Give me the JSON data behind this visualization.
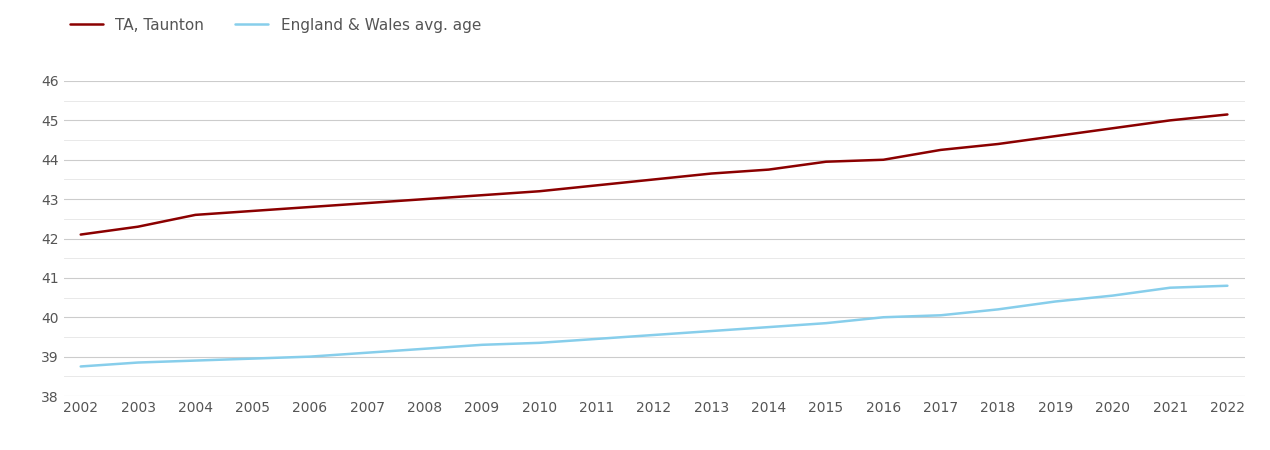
{
  "years": [
    2002,
    2003,
    2004,
    2005,
    2006,
    2007,
    2008,
    2009,
    2010,
    2011,
    2012,
    2013,
    2014,
    2015,
    2016,
    2017,
    2018,
    2019,
    2020,
    2021,
    2022
  ],
  "taunton": [
    42.1,
    42.3,
    42.6,
    42.7,
    42.8,
    42.9,
    43.0,
    43.1,
    43.2,
    43.35,
    43.5,
    43.65,
    43.75,
    43.95,
    44.0,
    44.25,
    44.4,
    44.6,
    44.8,
    45.0,
    45.15
  ],
  "england_wales": [
    38.75,
    38.85,
    38.9,
    38.95,
    39.0,
    39.1,
    39.2,
    39.3,
    39.35,
    39.45,
    39.55,
    39.65,
    39.75,
    39.85,
    40.0,
    40.05,
    40.2,
    40.4,
    40.55,
    40.75,
    40.8
  ],
  "taunton_color": "#8B0000",
  "england_wales_color": "#87CEEB",
  "taunton_label": "TA, Taunton",
  "england_wales_label": "England & Wales avg. age",
  "ylim": [
    38,
    46
  ],
  "yticks_major": [
    38,
    39,
    40,
    41,
    42,
    43,
    44,
    45,
    46
  ],
  "yticks_minor": [
    38.5,
    39.5,
    40.5,
    41.5,
    42.5,
    43.5,
    44.5,
    45.5
  ],
  "background_color": "#ffffff",
  "grid_color": "#cccccc",
  "grid_color_minor": "#e5e5e5",
  "line_width": 1.8,
  "legend_fontsize": 11,
  "tick_fontsize": 10,
  "tick_color": "#555555"
}
